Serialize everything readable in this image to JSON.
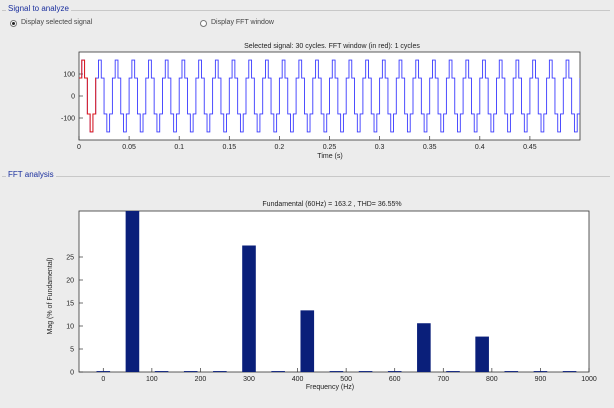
{
  "signal_panel": {
    "title": "Signal to analyze",
    "radio_selected_label": "Display selected signal",
    "radio_fft_label": "Display FFT window",
    "selected_option": "Display selected signal",
    "plot_title": "Selected signal: 30 cycles. FFT window (in red): 1 cycles",
    "xlabel": "Time (s)",
    "x_ticks": [
      "0",
      "0.05",
      "0.1",
      "0.15",
      "0.2",
      "0.25",
      "0.3",
      "0.35",
      "0.4",
      "0.45"
    ],
    "y_ticks": [
      "100",
      "0",
      "-100"
    ]
  },
  "fft_panel": {
    "title": "FFT analysis",
    "plot_title": "Fundamental (60Hz) = 163.2 , THD= 36.55%",
    "xlabel": "Frequency (Hz)",
    "ylabel": "Mag (% of Fundamental)",
    "x_ticks": [
      "0",
      "100",
      "200",
      "300",
      "400",
      "500",
      "600",
      "700",
      "800",
      "900",
      "1000"
    ],
    "y_ticks": [
      "0",
      "5",
      "10",
      "15",
      "20",
      "25"
    ]
  },
  "colors": {
    "signal_line": "#3a3aff",
    "fft_window_line": "#e01818",
    "bar": "#0a1f7a",
    "title_text": "#1a2f9e"
  },
  "chart_data": [
    {
      "type": "line",
      "title": "Selected signal: 30 cycles. FFT window (in red): 1 cycles",
      "xlabel": "Time (s)",
      "ylabel": "",
      "xlim": [
        0,
        0.5
      ],
      "ylim": [
        -200,
        200
      ],
      "grid": false,
      "series": [
        {
          "waveform": "six-step square wave",
          "fundamental_hz": 60,
          "amplitude": 163.2,
          "step_value": 81.6,
          "x_range": [
            0,
            0.5
          ],
          "color": "#3a3aff"
        },
        {
          "waveform": "six-step square wave",
          "fundamental_hz": 60,
          "amplitude": 163.2,
          "x_range": [
            0,
            0.0167
          ],
          "color": "#e01818"
        }
      ]
    },
    {
      "type": "bar",
      "title": "Fundamental (60Hz) = 163.2 , THD= 36.55%",
      "xlabel": "Frequency (Hz)",
      "ylabel": "Mag (% of Fundamental)",
      "xlim": [
        -50,
        1000
      ],
      "ylim": [
        0,
        35
      ],
      "grid": false,
      "x": [
        0,
        60,
        120,
        180,
        240,
        300,
        360,
        420,
        480,
        540,
        600,
        660,
        720,
        780,
        840,
        900,
        960
      ],
      "values": [
        0.2,
        35,
        0.2,
        0.2,
        0.2,
        27.5,
        0.2,
        13.4,
        0.2,
        0.2,
        0.2,
        10.6,
        0.2,
        7.7,
        0.2,
        0.2,
        0.2
      ],
      "color": "#0a1f7a"
    }
  ]
}
